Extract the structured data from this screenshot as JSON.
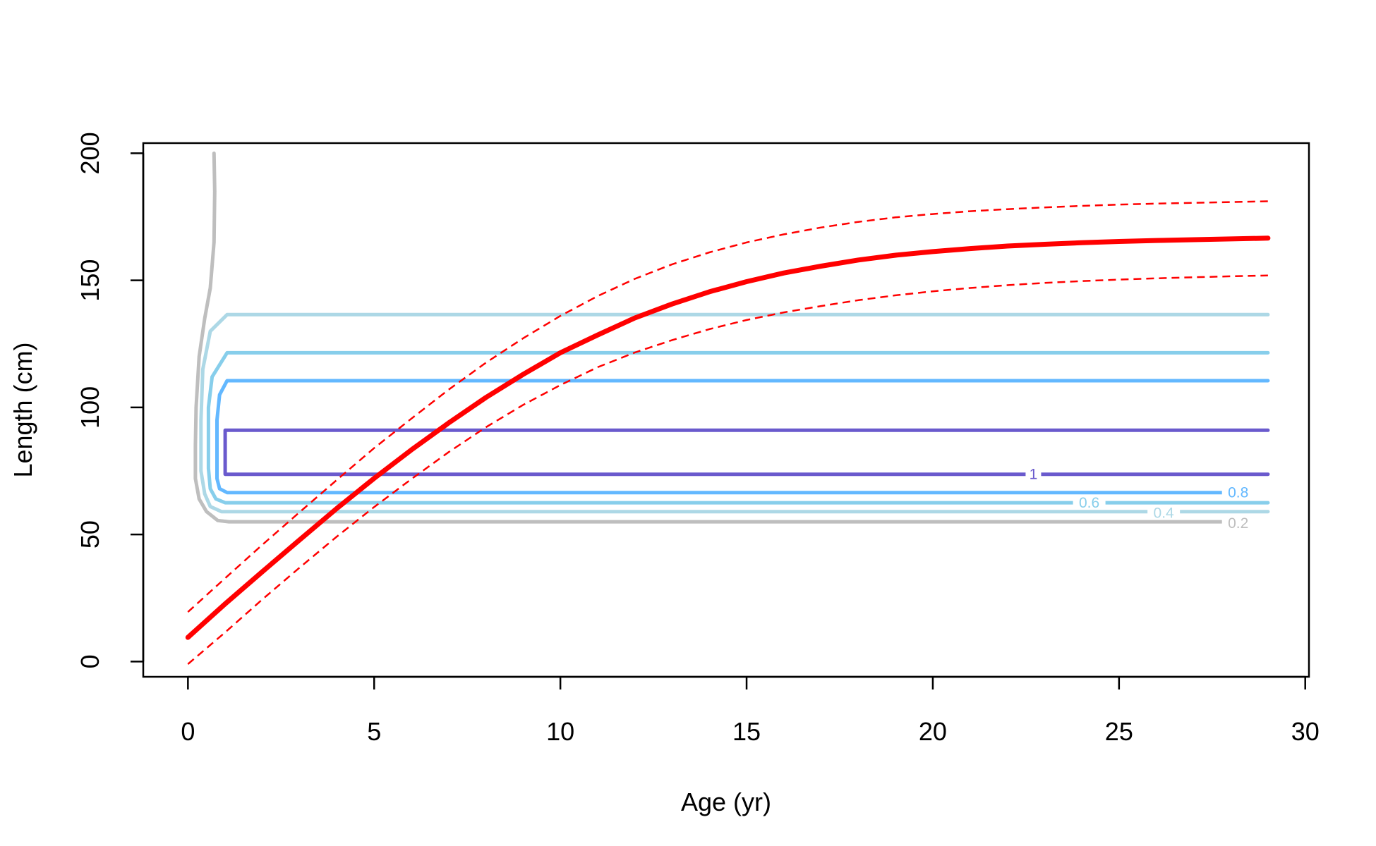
{
  "chart_data": {
    "type": "line",
    "title": "",
    "xlabel": "Age (yr)",
    "ylabel": "Length (cm)",
    "xlim": [
      -1.2,
      30.1
    ],
    "ylim": [
      -6,
      204
    ],
    "x_ticks": [
      0,
      5,
      10,
      15,
      20,
      25,
      30
    ],
    "y_ticks": [
      0,
      50,
      100,
      150,
      200
    ],
    "x_tick_labels": [
      "0",
      "5",
      "10",
      "15",
      "20",
      "25",
      "30"
    ],
    "y_tick_labels": [
      "0",
      "50",
      "100",
      "150",
      "200"
    ],
    "grid": false,
    "legend": "none",
    "series": [
      {
        "role": "mean",
        "color": "#ff0000",
        "style": "solid",
        "x": [
          0,
          1,
          2,
          3,
          4,
          5,
          6,
          7,
          8,
          9,
          10,
          11,
          12,
          13,
          14,
          15,
          16,
          17,
          18,
          19,
          20,
          21,
          22,
          23,
          24,
          25,
          26,
          27,
          28,
          29
        ],
        "y": [
          9.5,
          22.7,
          35.4,
          47.9,
          60.3,
          72.1,
          83.3,
          93.9,
          103.9,
          113,
          121.5,
          128.5,
          135.2,
          140.7,
          145.5,
          149.5,
          152.9,
          155.6,
          158,
          159.9,
          161.3,
          162.5,
          163.5,
          164.2,
          164.8,
          165.3,
          165.7,
          166,
          166.3,
          166.6
        ]
      },
      {
        "role": "upper",
        "color": "#ff0000",
        "style": "dashed",
        "x": [
          0,
          1,
          2,
          3,
          4,
          5,
          6,
          7,
          8,
          9,
          10,
          11,
          12,
          13,
          14,
          15,
          16,
          17,
          18,
          19,
          20,
          21,
          22,
          23,
          24,
          25,
          26,
          27,
          28,
          29
        ],
        "y": [
          19.5,
          32.8,
          46,
          58.8,
          71.5,
          84,
          95.6,
          107,
          117.6,
          127.2,
          136,
          143.8,
          150.6,
          156.3,
          161,
          164.9,
          168.1,
          170.8,
          173,
          174.8,
          176.1,
          177.2,
          178,
          178.7,
          179.3,
          179.8,
          180.2,
          180.5,
          180.8,
          181.1
        ]
      },
      {
        "role": "lower",
        "color": "#ff0000",
        "style": "dashed",
        "x": [
          0,
          1,
          2,
          3,
          4,
          5,
          6,
          7,
          8,
          9,
          10,
          11,
          12,
          13,
          14,
          15,
          16,
          17,
          18,
          19,
          20,
          21,
          22,
          23,
          24,
          25,
          26,
          27,
          28,
          29
        ],
        "y": [
          -1,
          11.5,
          24.5,
          37,
          49.2,
          60.8,
          71.8,
          82.4,
          92.2,
          101,
          108.8,
          115.8,
          121.6,
          126.5,
          130.8,
          134.4,
          137.4,
          139.9,
          142.2,
          144.1,
          145.7,
          147,
          148.1,
          149,
          149.7,
          150.3,
          150.8,
          151.2,
          151.6,
          151.9
        ]
      }
    ],
    "contours": [
      {
        "level": "0.2",
        "color": "#bebebe",
        "label": "0.2",
        "label_at": [
          28.2,
          54.5
        ],
        "points": [
          [
            0.7,
            200
          ],
          [
            0.72,
            185
          ],
          [
            0.7,
            165
          ],
          [
            0.6,
            147
          ],
          [
            0.45,
            135
          ],
          [
            0.3,
            120
          ],
          [
            0.22,
            100
          ],
          [
            0.2,
            85
          ],
          [
            0.2,
            72
          ],
          [
            0.3,
            64
          ],
          [
            0.5,
            59
          ],
          [
            0.8,
            55.5
          ],
          [
            1.1,
            55
          ],
          [
            28,
            55
          ]
        ]
      },
      {
        "level": "0.4",
        "color": "#add8e6",
        "label": "0.4",
        "label_at": [
          26.2,
          58.5
        ],
        "points": [
          [
            29,
            59
          ],
          [
            0.9,
            59
          ],
          [
            0.6,
            61
          ],
          [
            0.45,
            66
          ],
          [
            0.35,
            75
          ],
          [
            0.35,
            95
          ],
          [
            0.4,
            115
          ],
          [
            0.6,
            130
          ],
          [
            1.05,
            136.5
          ],
          [
            29,
            136.5
          ]
        ]
      },
      {
        "level": "0.6",
        "color": "#87ceeb",
        "label": "0.6",
        "label_at": [
          24.2,
          62.5
        ],
        "points": [
          [
            29,
            62.5
          ],
          [
            1,
            62.5
          ],
          [
            0.75,
            64
          ],
          [
            0.6,
            68
          ],
          [
            0.55,
            76
          ],
          [
            0.55,
            100
          ],
          [
            0.65,
            112
          ],
          [
            1.05,
            121.5
          ],
          [
            29,
            121.5
          ]
        ]
      },
      {
        "level": "0.8",
        "color": "#63b8ff",
        "label": "0.8",
        "label_at": [
          28.2,
          66.5
        ],
        "points": [
          [
            28,
            66.5
          ],
          [
            1.05,
            66.5
          ],
          [
            0.85,
            68
          ],
          [
            0.78,
            72
          ],
          [
            0.78,
            95
          ],
          [
            0.85,
            105
          ],
          [
            1.05,
            110.5
          ],
          [
            29,
            110.5
          ]
        ]
      },
      {
        "level": "1",
        "color": "#6a5acd",
        "label": "1",
        "label_at": [
          22.7,
          73.7
        ],
        "points": [
          [
            29,
            73.7
          ],
          [
            1,
            73.7
          ],
          [
            1,
            91
          ],
          [
            29,
            91
          ]
        ]
      }
    ]
  }
}
